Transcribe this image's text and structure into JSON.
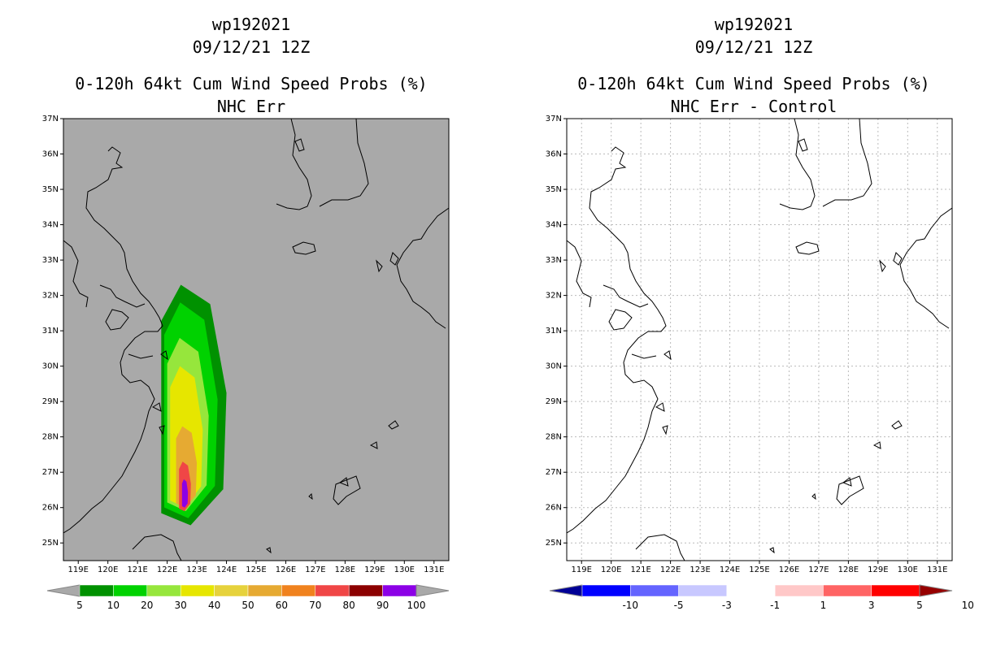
{
  "left_panel": {
    "title_line1": "wp192021",
    "title_line2": "09/12/21 12Z",
    "title_line3": "0-120h 64kt Cum Wind Speed Probs (%)",
    "title_line4": "NHC Err",
    "background_color": "#a9a9a9",
    "colorbar": {
      "labels": [
        "5",
        "10",
        "20",
        "30",
        "40",
        "50",
        "60",
        "70",
        "80",
        "90",
        "100"
      ],
      "colors": [
        "#009100",
        "#00d200",
        "#96e63c",
        "#e6e600",
        "#e6d23c",
        "#e6aa32",
        "#f0821e",
        "#f04646",
        "#8c0000",
        "#8c00e6"
      ]
    }
  },
  "right_panel": {
    "title_line1": "wp192021",
    "title_line2": "09/12/21 12Z",
    "title_line3": "0-120h 64kt Cum Wind Speed Probs (%)",
    "title_line4": "NHC Err - Control",
    "background_color": "#ffffff",
    "colorbar": {
      "labels": [
        "-10",
        "-5",
        "-3",
        "-1",
        "1",
        "3",
        "5",
        "10"
      ],
      "colors": [
        "#000096",
        "#0000ff",
        "#6464ff",
        "#c8c8ff",
        "#ffffff",
        "#ffc8c8",
        "#ff6464",
        "#ff0000",
        "#960000"
      ]
    }
  },
  "axes": {
    "lat_labels": [
      "37N",
      "36N",
      "35N",
      "34N",
      "33N",
      "32N",
      "31N",
      "30N",
      "29N",
      "28N",
      "27N",
      "26N",
      "25N"
    ],
    "lon_labels": [
      "119E",
      "120E",
      "121E",
      "122E",
      "123E",
      "124E",
      "125E",
      "126E",
      "127E",
      "128E",
      "129E",
      "130E",
      "131E"
    ]
  },
  "chart_data": {
    "type": "heatmap",
    "title": "0-120h 64kt Cum Wind Speed Probs (%)",
    "storm": "wp192021",
    "time": "09/12/21 12Z",
    "lat_range": [
      24.5,
      37
    ],
    "lon_range": [
      118.5,
      131.5
    ],
    "probability_contours_pct": [
      {
        "level": 5,
        "lon_range": [
          121.8,
          124.0
        ],
        "lat_range": [
          25.5,
          32.3
        ]
      },
      {
        "level": 10,
        "lon_range": [
          121.9,
          123.7
        ],
        "lat_range": [
          25.7,
          31.8
        ]
      },
      {
        "level": 20,
        "lon_range": [
          122.0,
          123.4
        ],
        "lat_range": [
          25.9,
          30.8
        ]
      },
      {
        "level": 30,
        "lon_range": [
          122.1,
          123.2
        ],
        "lat_range": [
          26.0,
          30.0
        ]
      },
      {
        "level": 50,
        "lon_range": [
          122.3,
          123.0
        ],
        "lat_range": [
          26.0,
          28.3
        ]
      },
      {
        "level": 70,
        "lon_range": [
          122.4,
          122.8
        ],
        "lat_range": [
          25.9,
          27.3
        ]
      },
      {
        "level": 100,
        "lon_range": [
          122.5,
          122.7
        ],
        "lat_range": [
          26.0,
          26.8
        ]
      }
    ],
    "difference_field": "none (all values between -1 and 1)"
  }
}
